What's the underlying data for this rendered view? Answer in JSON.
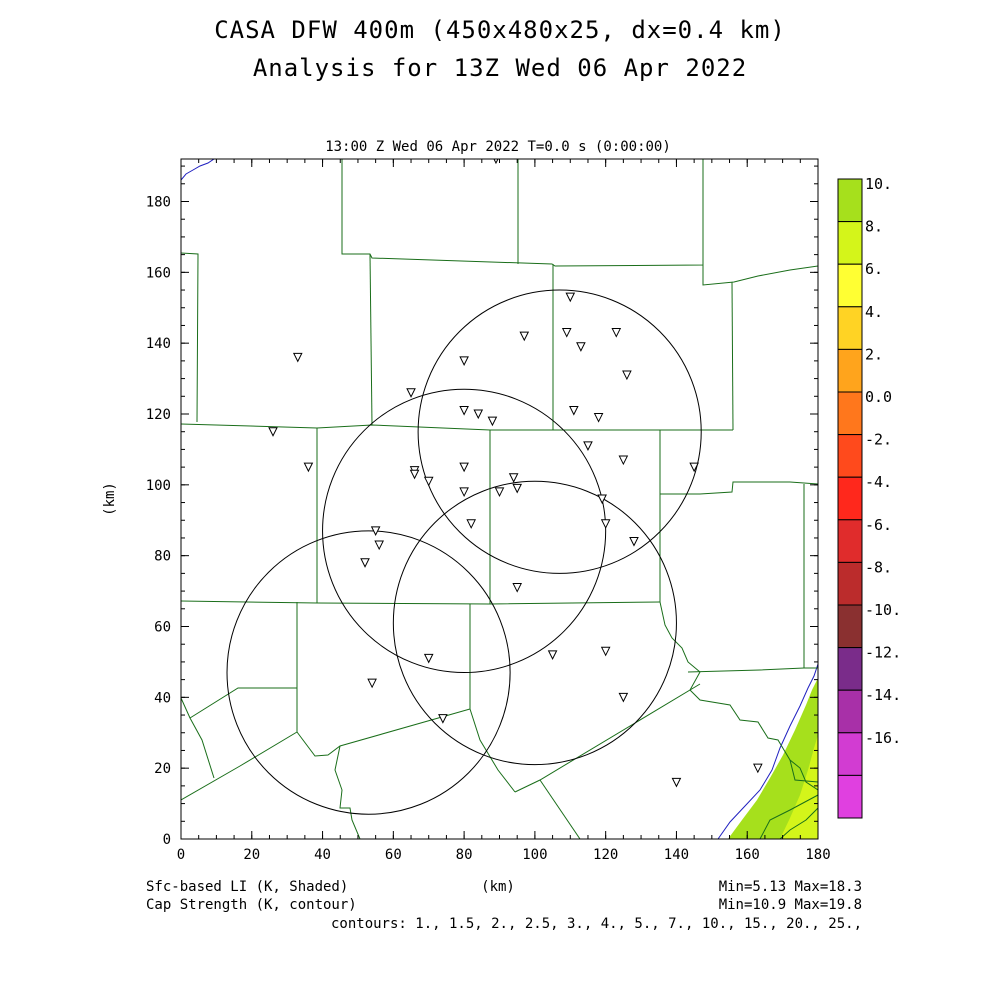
{
  "title_line1": "CASA DFW 400m (450x480x25, dx=0.4 km)",
  "title_line2": "Analysis for 13Z Wed 06 Apr 2022",
  "plot_header": "13:00 Z Wed 06 Apr 2022   T=0.0 s (0:00:00)",
  "axes": {
    "x_label": "(km)",
    "y_label": "(km)",
    "x_range": [
      0,
      180
    ],
    "y_range": [
      0,
      192
    ],
    "x_ticks": [
      "0",
      "20",
      "40",
      "60",
      "80",
      "100",
      "120",
      "140",
      "160",
      "180"
    ],
    "y_ticks": [
      "0",
      "20",
      "40",
      "60",
      "80",
      "100",
      "120",
      "140",
      "160",
      "180"
    ]
  },
  "footer": {
    "left1": "Sfc-based LI (K, Shaded)",
    "left2": "Cap Strength (K, contour)",
    "center": "(km)",
    "right1": "Min=5.13 Max=18.3",
    "right2": "Min=10.9 Max=19.8",
    "contours": "contours: 1., 1.5, 2., 2.5, 3., 4., 5., 7., 10., 15., 20., 25.,"
  },
  "colorbar": {
    "labels": [
      "10.",
      "8.",
      "6.",
      "4.",
      "2.",
      "0.0",
      "-2.",
      "-4.",
      "-6.",
      "-8.",
      "-10.",
      "-12.",
      "-14.",
      "-16."
    ],
    "colors": [
      "#a6e01c",
      "#d4f51a",
      "#ffff33",
      "#ffd324",
      "#ffa41c",
      "#ff771c",
      "#ff4a1c",
      "#ff281c",
      "#e02c2c",
      "#bb2c2c",
      "#8a3030",
      "#7a2c8a",
      "#a830a8",
      "#d23cd2",
      "#e040e0"
    ]
  },
  "radar_circles": [
    {
      "center": [
        107,
        115
      ],
      "radius": 40
    },
    {
      "center": [
        80,
        87
      ],
      "radius": 40
    },
    {
      "center": [
        100,
        61
      ],
      "radius": 40
    },
    {
      "center": [
        53,
        47
      ],
      "radius": 40
    }
  ],
  "stations": [
    [
      89,
      192
    ],
    [
      110,
      153
    ],
    [
      97,
      142
    ],
    [
      109,
      143
    ],
    [
      113,
      139
    ],
    [
      123,
      143
    ],
    [
      80,
      135
    ],
    [
      126,
      131
    ],
    [
      65,
      126
    ],
    [
      33,
      136
    ],
    [
      111,
      121
    ],
    [
      118,
      119
    ],
    [
      80,
      121
    ],
    [
      84,
      120
    ],
    [
      88,
      118
    ],
    [
      26,
      115
    ],
    [
      115,
      111
    ],
    [
      125,
      107
    ],
    [
      145,
      105
    ],
    [
      36,
      105
    ],
    [
      80,
      105
    ],
    [
      66,
      104
    ],
    [
      66,
      103
    ],
    [
      70,
      101
    ],
    [
      94,
      102
    ],
    [
      95,
      99
    ],
    [
      80,
      98
    ],
    [
      90,
      98
    ],
    [
      119,
      96
    ],
    [
      82,
      89
    ],
    [
      120,
      89
    ],
    [
      128,
      84
    ],
    [
      55,
      87
    ],
    [
      56,
      83
    ],
    [
      52,
      78
    ],
    [
      95,
      71
    ],
    [
      105,
      52
    ],
    [
      120,
      53
    ],
    [
      70,
      51
    ],
    [
      54,
      44
    ],
    [
      125,
      40
    ],
    [
      74,
      34
    ],
    [
      140,
      16
    ],
    [
      163,
      20
    ]
  ],
  "shaded_li_regions": [
    {
      "value_range": [
        8,
        10
      ],
      "color": "#a6e01c"
    },
    {
      "value_range": [
        6,
        8
      ],
      "color": "#d4f51a"
    }
  ]
}
